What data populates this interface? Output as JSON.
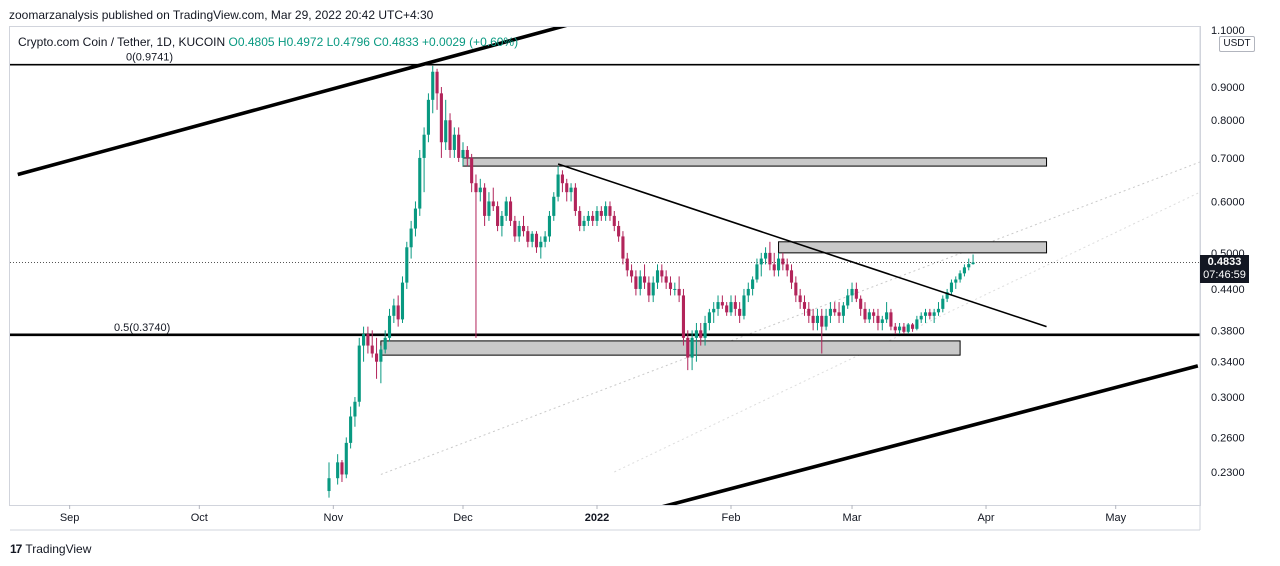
{
  "header": {
    "publisher_line": "zoomarzanalysis published on TradingView.com, Mar 29, 2022 20:42 UTC+4:30"
  },
  "legend": {
    "symbol": "Crypto.com Coin / Tether, 1D, KUCOIN",
    "ohlc": "O0.4805  H0.4972  L0.4796  C0.4833  +0.0029 (+0.60%)"
  },
  "currency": "USDT",
  "price_tag": {
    "value": "0.4833",
    "countdown": "07:46:59"
  },
  "footer": {
    "brand": "TradingView",
    "logo_text": "17"
  },
  "colors": {
    "up": "#089981",
    "down": "#b2245a",
    "line": "#000000",
    "zone_fill": "#c9c9c9"
  },
  "chart_data": {
    "type": "candlestick",
    "title": "Crypto.com Coin / Tether, 1D, KUCOIN",
    "scale": "log",
    "y_ticks": [
      "1.1000",
      "0.9000",
      "0.8000",
      "0.7000",
      "0.6000",
      "0.5000",
      "0.4400",
      "0.3800",
      "0.3400",
      "0.3000",
      "0.2600",
      "0.2300"
    ],
    "x_ticks": [
      "Sep",
      "Oct",
      "Nov",
      "Dec",
      "2022",
      "Feb",
      "Mar",
      "Apr",
      "May"
    ],
    "fib_labels": [
      "0(0.9741)",
      "0.5(0.3740)"
    ],
    "last_close": 0.4833,
    "candles": [
      {
        "d": "Oct 31",
        "o": 0.215,
        "h": 0.238,
        "l": 0.21,
        "c": 0.225
      },
      {
        "d": "Nov 2",
        "o": 0.225,
        "h": 0.245,
        "l": 0.22,
        "c": 0.238
      },
      {
        "d": "Nov 3",
        "o": 0.238,
        "h": 0.24,
        "l": 0.222,
        "c": 0.228
      },
      {
        "d": "Nov 4",
        "o": 0.228,
        "h": 0.26,
        "l": 0.225,
        "c": 0.255
      },
      {
        "d": "Nov 5",
        "o": 0.255,
        "h": 0.29,
        "l": 0.25,
        "c": 0.28
      },
      {
        "d": "Nov 6",
        "o": 0.28,
        "h": 0.3,
        "l": 0.27,
        "c": 0.295
      },
      {
        "d": "Nov 7",
        "o": 0.295,
        "h": 0.37,
        "l": 0.29,
        "c": 0.36
      },
      {
        "d": "Nov 8",
        "o": 0.36,
        "h": 0.385,
        "l": 0.34,
        "c": 0.375
      },
      {
        "d": "Nov 9",
        "o": 0.375,
        "h": 0.385,
        "l": 0.35,
        "c": 0.36
      },
      {
        "d": "Nov 10",
        "o": 0.36,
        "h": 0.38,
        "l": 0.345,
        "c": 0.35
      },
      {
        "d": "Nov 11",
        "o": 0.35,
        "h": 0.37,
        "l": 0.32,
        "c": 0.34
      },
      {
        "d": "Nov 12",
        "o": 0.34,
        "h": 0.36,
        "l": 0.315,
        "c": 0.355
      },
      {
        "d": "Nov 13",
        "o": 0.355,
        "h": 0.38,
        "l": 0.35,
        "c": 0.37
      },
      {
        "d": "Nov 14",
        "o": 0.37,
        "h": 0.41,
        "l": 0.365,
        "c": 0.4
      },
      {
        "d": "Nov 15",
        "o": 0.4,
        "h": 0.425,
        "l": 0.39,
        "c": 0.415
      },
      {
        "d": "Nov 16",
        "o": 0.415,
        "h": 0.43,
        "l": 0.385,
        "c": 0.395
      },
      {
        "d": "Nov 17",
        "o": 0.395,
        "h": 0.46,
        "l": 0.39,
        "c": 0.45
      },
      {
        "d": "Nov 18",
        "o": 0.45,
        "h": 0.52,
        "l": 0.44,
        "c": 0.51
      },
      {
        "d": "Nov 19",
        "o": 0.51,
        "h": 0.56,
        "l": 0.49,
        "c": 0.545
      },
      {
        "d": "Nov 20",
        "o": 0.545,
        "h": 0.6,
        "l": 0.53,
        "c": 0.585
      },
      {
        "d": "Nov 21",
        "o": 0.585,
        "h": 0.72,
        "l": 0.57,
        "c": 0.7
      },
      {
        "d": "Nov 22",
        "o": 0.7,
        "h": 0.78,
        "l": 0.62,
        "c": 0.76
      },
      {
        "d": "Nov 23",
        "o": 0.76,
        "h": 0.88,
        "l": 0.74,
        "c": 0.86
      },
      {
        "d": "Nov 24",
        "o": 0.86,
        "h": 0.97,
        "l": 0.82,
        "c": 0.95
      },
      {
        "d": "Nov 25",
        "o": 0.95,
        "h": 0.96,
        "l": 0.83,
        "c": 0.88
      },
      {
        "d": "Nov 26",
        "o": 0.88,
        "h": 0.9,
        "l": 0.7,
        "c": 0.74
      },
      {
        "d": "Nov 27",
        "o": 0.74,
        "h": 0.86,
        "l": 0.72,
        "c": 0.8
      },
      {
        "d": "Nov 28",
        "o": 0.8,
        "h": 0.82,
        "l": 0.7,
        "c": 0.72
      },
      {
        "d": "Nov 29",
        "o": 0.72,
        "h": 0.78,
        "l": 0.7,
        "c": 0.76
      },
      {
        "d": "Nov 30",
        "o": 0.76,
        "h": 0.78,
        "l": 0.69,
        "c": 0.7
      },
      {
        "d": "Dec 1",
        "o": 0.7,
        "h": 0.74,
        "l": 0.68,
        "c": 0.72
      },
      {
        "d": "Dec 2",
        "o": 0.72,
        "h": 0.73,
        "l": 0.68,
        "c": 0.7
      },
      {
        "d": "Dec 3",
        "o": 0.7,
        "h": 0.71,
        "l": 0.62,
        "c": 0.64
      },
      {
        "d": "Dec 4",
        "o": 0.64,
        "h": 0.66,
        "l": 0.37,
        "c": 0.62
      },
      {
        "d": "Dec 5",
        "o": 0.62,
        "h": 0.65,
        "l": 0.6,
        "c": 0.63
      },
      {
        "d": "Dec 6",
        "o": 0.63,
        "h": 0.64,
        "l": 0.55,
        "c": 0.57
      },
      {
        "d": "Dec 7",
        "o": 0.57,
        "h": 0.62,
        "l": 0.56,
        "c": 0.6
      },
      {
        "d": "Dec 8",
        "o": 0.6,
        "h": 0.63,
        "l": 0.58,
        "c": 0.59
      },
      {
        "d": "Dec 9",
        "o": 0.59,
        "h": 0.6,
        "l": 0.54,
        "c": 0.55
      },
      {
        "d": "Dec 10",
        "o": 0.55,
        "h": 0.58,
        "l": 0.53,
        "c": 0.57
      },
      {
        "d": "Dec 11",
        "o": 0.57,
        "h": 0.61,
        "l": 0.56,
        "c": 0.6
      },
      {
        "d": "Dec 12",
        "o": 0.6,
        "h": 0.61,
        "l": 0.55,
        "c": 0.56
      },
      {
        "d": "Dec 13",
        "o": 0.56,
        "h": 0.57,
        "l": 0.52,
        "c": 0.53
      },
      {
        "d": "Dec 14",
        "o": 0.53,
        "h": 0.56,
        "l": 0.52,
        "c": 0.55
      },
      {
        "d": "Dec 15",
        "o": 0.55,
        "h": 0.57,
        "l": 0.53,
        "c": 0.54
      },
      {
        "d": "Dec 16",
        "o": 0.54,
        "h": 0.55,
        "l": 0.51,
        "c": 0.52
      },
      {
        "d": "Dec 17",
        "o": 0.52,
        "h": 0.54,
        "l": 0.51,
        "c": 0.535
      },
      {
        "d": "Dec 18",
        "o": 0.535,
        "h": 0.54,
        "l": 0.5,
        "c": 0.51
      },
      {
        "d": "Dec 19",
        "o": 0.51,
        "h": 0.53,
        "l": 0.49,
        "c": 0.52
      },
      {
        "d": "Dec 20",
        "o": 0.52,
        "h": 0.54,
        "l": 0.51,
        "c": 0.53
      },
      {
        "d": "Dec 21",
        "o": 0.53,
        "h": 0.58,
        "l": 0.52,
        "c": 0.57
      },
      {
        "d": "Dec 22",
        "o": 0.57,
        "h": 0.62,
        "l": 0.56,
        "c": 0.61
      },
      {
        "d": "Dec 23",
        "o": 0.61,
        "h": 0.68,
        "l": 0.6,
        "c": 0.66
      },
      {
        "d": "Dec 24",
        "o": 0.66,
        "h": 0.67,
        "l": 0.62,
        "c": 0.64
      },
      {
        "d": "Dec 25",
        "o": 0.64,
        "h": 0.65,
        "l": 0.6,
        "c": 0.62
      },
      {
        "d": "Dec 26",
        "o": 0.62,
        "h": 0.64,
        "l": 0.6,
        "c": 0.63
      },
      {
        "d": "Dec 27",
        "o": 0.63,
        "h": 0.64,
        "l": 0.57,
        "c": 0.58
      },
      {
        "d": "Dec 28",
        "o": 0.58,
        "h": 0.59,
        "l": 0.54,
        "c": 0.55
      },
      {
        "d": "Dec 29",
        "o": 0.55,
        "h": 0.57,
        "l": 0.54,
        "c": 0.56
      },
      {
        "d": "Dec 30",
        "o": 0.56,
        "h": 0.58,
        "l": 0.55,
        "c": 0.57
      },
      {
        "d": "Dec 31",
        "o": 0.57,
        "h": 0.58,
        "l": 0.55,
        "c": 0.56
      },
      {
        "d": "Jan 1",
        "o": 0.56,
        "h": 0.59,
        "l": 0.55,
        "c": 0.58
      },
      {
        "d": "Jan 2",
        "o": 0.58,
        "h": 0.59,
        "l": 0.56,
        "c": 0.57
      },
      {
        "d": "Jan 3",
        "o": 0.57,
        "h": 0.6,
        "l": 0.56,
        "c": 0.59
      },
      {
        "d": "Jan 4",
        "o": 0.59,
        "h": 0.6,
        "l": 0.56,
        "c": 0.57
      },
      {
        "d": "Jan 5",
        "o": 0.57,
        "h": 0.58,
        "l": 0.54,
        "c": 0.55
      },
      {
        "d": "Jan 6",
        "o": 0.55,
        "h": 0.56,
        "l": 0.52,
        "c": 0.53
      },
      {
        "d": "Jan 7",
        "o": 0.53,
        "h": 0.54,
        "l": 0.48,
        "c": 0.49
      },
      {
        "d": "Jan 8",
        "o": 0.49,
        "h": 0.5,
        "l": 0.46,
        "c": 0.47
      },
      {
        "d": "Jan 9",
        "o": 0.47,
        "h": 0.48,
        "l": 0.45,
        "c": 0.46
      },
      {
        "d": "Jan 10",
        "o": 0.46,
        "h": 0.47,
        "l": 0.43,
        "c": 0.44
      },
      {
        "d": "Jan 11",
        "o": 0.44,
        "h": 0.47,
        "l": 0.43,
        "c": 0.46
      },
      {
        "d": "Jan 12",
        "o": 0.46,
        "h": 0.48,
        "l": 0.44,
        "c": 0.45
      },
      {
        "d": "Jan 13",
        "o": 0.45,
        "h": 0.46,
        "l": 0.42,
        "c": 0.43
      },
      {
        "d": "Jan 14",
        "o": 0.43,
        "h": 0.46,
        "l": 0.42,
        "c": 0.45
      },
      {
        "d": "Jan 15",
        "o": 0.45,
        "h": 0.48,
        "l": 0.44,
        "c": 0.47
      },
      {
        "d": "Jan 16",
        "o": 0.47,
        "h": 0.48,
        "l": 0.45,
        "c": 0.46
      },
      {
        "d": "Jan 17",
        "o": 0.46,
        "h": 0.47,
        "l": 0.44,
        "c": 0.45
      },
      {
        "d": "Jan 18",
        "o": 0.45,
        "h": 0.46,
        "l": 0.43,
        "c": 0.44
      },
      {
        "d": "Jan 19",
        "o": 0.44,
        "h": 0.45,
        "l": 0.43,
        "c": 0.44
      },
      {
        "d": "Jan 20",
        "o": 0.44,
        "h": 0.46,
        "l": 0.42,
        "c": 0.43
      },
      {
        "d": "Jan 21",
        "o": 0.43,
        "h": 0.44,
        "l": 0.36,
        "c": 0.37
      },
      {
        "d": "Jan 22",
        "o": 0.37,
        "h": 0.38,
        "l": 0.33,
        "c": 0.345
      },
      {
        "d": "Jan 23",
        "o": 0.345,
        "h": 0.38,
        "l": 0.33,
        "c": 0.37
      },
      {
        "d": "Jan 24",
        "o": 0.37,
        "h": 0.39,
        "l": 0.34,
        "c": 0.38
      },
      {
        "d": "Jan 25",
        "o": 0.38,
        "h": 0.39,
        "l": 0.36,
        "c": 0.37
      },
      {
        "d": "Jan 26",
        "o": 0.37,
        "h": 0.4,
        "l": 0.36,
        "c": 0.39
      },
      {
        "d": "Jan 27",
        "o": 0.39,
        "h": 0.41,
        "l": 0.38,
        "c": 0.405
      },
      {
        "d": "Jan 28",
        "o": 0.405,
        "h": 0.42,
        "l": 0.39,
        "c": 0.41
      },
      {
        "d": "Jan 29",
        "o": 0.41,
        "h": 0.43,
        "l": 0.4,
        "c": 0.42
      },
      {
        "d": "Jan 30",
        "o": 0.42,
        "h": 0.43,
        "l": 0.41,
        "c": 0.415
      },
      {
        "d": "Jan 31",
        "o": 0.415,
        "h": 0.42,
        "l": 0.4,
        "c": 0.405
      },
      {
        "d": "Feb 1",
        "o": 0.405,
        "h": 0.43,
        "l": 0.4,
        "c": 0.42
      },
      {
        "d": "Feb 2",
        "o": 0.42,
        "h": 0.43,
        "l": 0.4,
        "c": 0.41
      },
      {
        "d": "Feb 3",
        "o": 0.41,
        "h": 0.42,
        "l": 0.39,
        "c": 0.4
      },
      {
        "d": "Feb 4",
        "o": 0.4,
        "h": 0.44,
        "l": 0.395,
        "c": 0.43
      },
      {
        "d": "Feb 5",
        "o": 0.43,
        "h": 0.45,
        "l": 0.42,
        "c": 0.44
      },
      {
        "d": "Feb 6",
        "o": 0.44,
        "h": 0.46,
        "l": 0.43,
        "c": 0.455
      },
      {
        "d": "Feb 7",
        "o": 0.455,
        "h": 0.49,
        "l": 0.45,
        "c": 0.48
      },
      {
        "d": "Feb 8",
        "o": 0.48,
        "h": 0.5,
        "l": 0.46,
        "c": 0.49
      },
      {
        "d": "Feb 9",
        "o": 0.49,
        "h": 0.51,
        "l": 0.48,
        "c": 0.5
      },
      {
        "d": "Feb 10",
        "o": 0.5,
        "h": 0.52,
        "l": 0.47,
        "c": 0.48
      },
      {
        "d": "Feb 11",
        "o": 0.48,
        "h": 0.5,
        "l": 0.46,
        "c": 0.47
      },
      {
        "d": "Feb 12",
        "o": 0.47,
        "h": 0.5,
        "l": 0.46,
        "c": 0.49
      },
      {
        "d": "Feb 13",
        "o": 0.49,
        "h": 0.5,
        "l": 0.47,
        "c": 0.48
      },
      {
        "d": "Feb 14",
        "o": 0.48,
        "h": 0.49,
        "l": 0.46,
        "c": 0.47
      },
      {
        "d": "Feb 15",
        "o": 0.47,
        "h": 0.48,
        "l": 0.44,
        "c": 0.45
      },
      {
        "d": "Feb 16",
        "o": 0.45,
        "h": 0.46,
        "l": 0.42,
        "c": 0.43
      },
      {
        "d": "Feb 17",
        "o": 0.43,
        "h": 0.44,
        "l": 0.41,
        "c": 0.42
      },
      {
        "d": "Feb 18",
        "o": 0.42,
        "h": 0.43,
        "l": 0.4,
        "c": 0.41
      },
      {
        "d": "Feb 19",
        "o": 0.41,
        "h": 0.42,
        "l": 0.39,
        "c": 0.4
      },
      {
        "d": "Feb 20",
        "o": 0.4,
        "h": 0.41,
        "l": 0.38,
        "c": 0.39
      },
      {
        "d": "Feb 21",
        "o": 0.39,
        "h": 0.41,
        "l": 0.38,
        "c": 0.4
      },
      {
        "d": "Feb 22",
        "o": 0.4,
        "h": 0.41,
        "l": 0.35,
        "c": 0.385
      },
      {
        "d": "Feb 23",
        "o": 0.385,
        "h": 0.41,
        "l": 0.38,
        "c": 0.4
      },
      {
        "d": "Feb 24",
        "o": 0.4,
        "h": 0.42,
        "l": 0.39,
        "c": 0.41
      },
      {
        "d": "Feb 25",
        "o": 0.41,
        "h": 0.42,
        "l": 0.4,
        "c": 0.405
      },
      {
        "d": "Feb 26",
        "o": 0.405,
        "h": 0.42,
        "l": 0.39,
        "c": 0.4
      },
      {
        "d": "Feb 27",
        "o": 0.4,
        "h": 0.42,
        "l": 0.39,
        "c": 0.415
      },
      {
        "d": "Feb 28",
        "o": 0.415,
        "h": 0.44,
        "l": 0.41,
        "c": 0.43
      },
      {
        "d": "Mar 1",
        "o": 0.43,
        "h": 0.45,
        "l": 0.42,
        "c": 0.44
      },
      {
        "d": "Mar 2",
        "o": 0.44,
        "h": 0.45,
        "l": 0.42,
        "c": 0.425
      },
      {
        "d": "Mar 3",
        "o": 0.425,
        "h": 0.43,
        "l": 0.4,
        "c": 0.41
      },
      {
        "d": "Mar 4",
        "o": 0.41,
        "h": 0.42,
        "l": 0.39,
        "c": 0.395
      },
      {
        "d": "Mar 5",
        "o": 0.395,
        "h": 0.41,
        "l": 0.39,
        "c": 0.405
      },
      {
        "d": "Mar 6",
        "o": 0.405,
        "h": 0.41,
        "l": 0.39,
        "c": 0.4
      },
      {
        "d": "Mar 7",
        "o": 0.4,
        "h": 0.41,
        "l": 0.38,
        "c": 0.39
      },
      {
        "d": "Mar 8",
        "o": 0.39,
        "h": 0.4,
        "l": 0.38,
        "c": 0.395
      },
      {
        "d": "Mar 9",
        "o": 0.395,
        "h": 0.42,
        "l": 0.39,
        "c": 0.405
      },
      {
        "d": "Mar 10",
        "o": 0.405,
        "h": 0.41,
        "l": 0.38,
        "c": 0.385
      },
      {
        "d": "Mar 11",
        "o": 0.385,
        "h": 0.39,
        "l": 0.375,
        "c": 0.38
      },
      {
        "d": "Mar 12",
        "o": 0.38,
        "h": 0.39,
        "l": 0.375,
        "c": 0.385
      },
      {
        "d": "Mar 13",
        "o": 0.385,
        "h": 0.39,
        "l": 0.375,
        "c": 0.378
      },
      {
        "d": "Mar 14",
        "o": 0.378,
        "h": 0.39,
        "l": 0.375,
        "c": 0.388
      },
      {
        "d": "Mar 15",
        "o": 0.388,
        "h": 0.39,
        "l": 0.378,
        "c": 0.382
      },
      {
        "d": "Mar 16",
        "o": 0.382,
        "h": 0.4,
        "l": 0.38,
        "c": 0.395
      },
      {
        "d": "Mar 17",
        "o": 0.395,
        "h": 0.405,
        "l": 0.39,
        "c": 0.4
      },
      {
        "d": "Mar 18",
        "o": 0.4,
        "h": 0.41,
        "l": 0.39,
        "c": 0.405
      },
      {
        "d": "Mar 19",
        "o": 0.405,
        "h": 0.41,
        "l": 0.395,
        "c": 0.4
      },
      {
        "d": "Mar 20",
        "o": 0.4,
        "h": 0.41,
        "l": 0.39,
        "c": 0.405
      },
      {
        "d": "Mar 21",
        "o": 0.405,
        "h": 0.42,
        "l": 0.4,
        "c": 0.41
      },
      {
        "d": "Mar 22",
        "o": 0.41,
        "h": 0.43,
        "l": 0.405,
        "c": 0.425
      },
      {
        "d": "Mar 23",
        "o": 0.425,
        "h": 0.44,
        "l": 0.42,
        "c": 0.435
      },
      {
        "d": "Mar 24",
        "o": 0.435,
        "h": 0.455,
        "l": 0.43,
        "c": 0.45
      },
      {
        "d": "Mar 25",
        "o": 0.45,
        "h": 0.46,
        "l": 0.44,
        "c": 0.455
      },
      {
        "d": "Mar 26",
        "o": 0.455,
        "h": 0.47,
        "l": 0.45,
        "c": 0.465
      },
      {
        "d": "Mar 27",
        "o": 0.465,
        "h": 0.48,
        "l": 0.46,
        "c": 0.475
      },
      {
        "d": "Mar 28",
        "o": 0.475,
        "h": 0.49,
        "l": 0.47,
        "c": 0.4805
      },
      {
        "d": "Mar 29",
        "o": 0.4805,
        "h": 0.4972,
        "l": 0.4796,
        "c": 0.4833
      }
    ],
    "drawings": {
      "horizontal_lines": [
        0.9741,
        0.374
      ],
      "zones": [
        {
          "from": "Dec 1",
          "to": "Apr 15",
          "low": 0.68,
          "high": 0.7
        },
        {
          "from": "Feb 12",
          "to": "Apr 15",
          "low": 0.5,
          "high": 0.52
        },
        {
          "from": "Nov 12",
          "to": "Mar 26",
          "low": 0.348,
          "high": 0.366
        }
      ],
      "trendlines": [
        {
          "from": {
            "d": "Dec 23",
            "p": 0.685
          },
          "to": {
            "d": "Apr 15",
            "p": 0.385
          }
        },
        {
          "from": {
            "d": "Aug 20",
            "p": 0.66
          },
          "to": {
            "d": "Dec 25",
            "p": 1.12
          }
        },
        {
          "from": {
            "d": "Jan 12",
            "p": 0.2
          },
          "to": {
            "d": "May 20",
            "p": 0.335
          }
        }
      ]
    }
  }
}
